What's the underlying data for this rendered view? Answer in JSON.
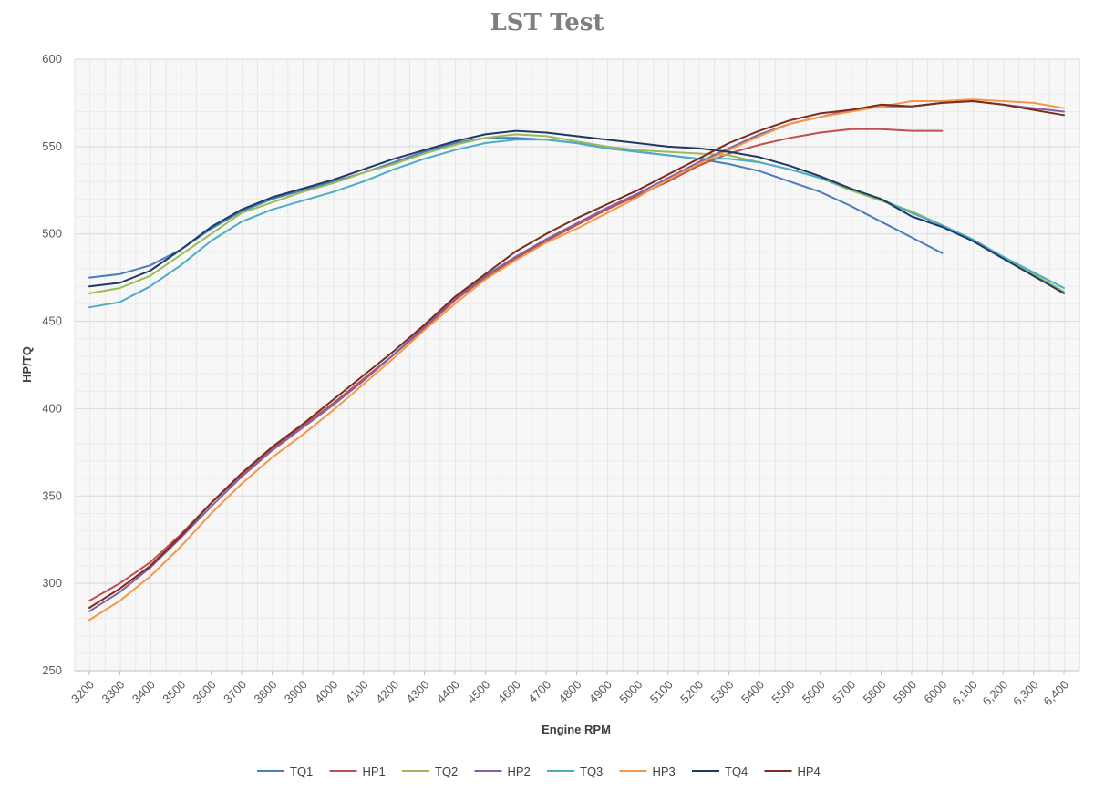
{
  "chart_data": {
    "type": "line",
    "title": "LST Test",
    "xlabel": "Engine RPM",
    "ylabel": "HP/TQ",
    "ylim": [
      250,
      600
    ],
    "yticks": [
      250,
      300,
      350,
      400,
      450,
      500,
      550,
      600
    ],
    "grid": true,
    "legend_position": "bottom",
    "categories": [
      "3200",
      "3300",
      "3400",
      "3500",
      "3600",
      "3700",
      "3800",
      "3900",
      "4000",
      "4100",
      "4200",
      "4300",
      "4400",
      "4500",
      "4600",
      "4700",
      "4800",
      "4900",
      "5000",
      "5100",
      "5200",
      "5300",
      "5400",
      "5500",
      "5600",
      "5700",
      "5800",
      "5900",
      "6000",
      "6,100",
      "6,200",
      "6,300",
      "6,400"
    ],
    "series": [
      {
        "name": "TQ1",
        "color": "#4a7ebb",
        "values": [
          475,
          477,
          482,
          491,
          503,
          513,
          520,
          525,
          530,
          535,
          541,
          547,
          552,
          555,
          555,
          554,
          552,
          549,
          547,
          545,
          543,
          540,
          536,
          530,
          524,
          516,
          507,
          498,
          489,
          null,
          null,
          null,
          null
        ]
      },
      {
        "name": "HP1",
        "color": "#c0504d",
        "values": [
          290,
          300,
          312,
          328,
          346,
          362,
          377,
          390,
          403,
          417,
          431,
          446,
          462,
          475,
          486,
          496,
          505,
          514,
          522,
          530,
          539,
          546,
          551,
          555,
          558,
          560,
          560,
          559,
          559,
          null,
          null,
          null,
          null
        ]
      },
      {
        "name": "TQ2",
        "color": "#9bbb59",
        "values": [
          466,
          469,
          476,
          488,
          500,
          512,
          518,
          524,
          529,
          535,
          540,
          546,
          551,
          555,
          557,
          556,
          553,
          550,
          548,
          547,
          546,
          545,
          541,
          537,
          532,
          525,
          519,
          513,
          505,
          496,
          487,
          477,
          467
        ]
      },
      {
        "name": "HP2",
        "color": "#8064a2",
        "values": [
          284,
          295,
          309,
          326,
          344,
          361,
          376,
          389,
          402,
          416,
          431,
          447,
          463,
          476,
          487,
          497,
          506,
          515,
          523,
          532,
          541,
          549,
          557,
          563,
          567,
          571,
          573,
          573,
          575,
          576,
          574,
          572,
          570
        ]
      },
      {
        "name": "TQ3",
        "color": "#4bacc6",
        "values": [
          458,
          461,
          470,
          482,
          496,
          507,
          514,
          519,
          524,
          530,
          537,
          543,
          548,
          552,
          554,
          554,
          552,
          549,
          547,
          545,
          543,
          543,
          541,
          537,
          532,
          526,
          520,
          512,
          505,
          497,
          487,
          478,
          469
        ]
      },
      {
        "name": "HP3",
        "color": "#f79646",
        "values": [
          279,
          290,
          304,
          321,
          340,
          357,
          372,
          385,
          399,
          414,
          429,
          445,
          460,
          474,
          485,
          495,
          503,
          512,
          521,
          531,
          540,
          548,
          556,
          563,
          567,
          570,
          573,
          576,
          576,
          577,
          576,
          575,
          572
        ]
      },
      {
        "name": "TQ4",
        "color": "#1f3864",
        "values": [
          470,
          472,
          479,
          491,
          504,
          514,
          521,
          526,
          531,
          537,
          543,
          548,
          553,
          557,
          559,
          558,
          556,
          554,
          552,
          550,
          549,
          547,
          544,
          539,
          533,
          526,
          520,
          510,
          504,
          496,
          486,
          476,
          466
        ]
      },
      {
        "name": "HP4",
        "color": "#7b2c1e",
        "values": [
          286,
          297,
          310,
          327,
          346,
          363,
          378,
          391,
          405,
          419,
          433,
          448,
          464,
          477,
          490,
          500,
          509,
          517,
          525,
          534,
          543,
          552,
          559,
          565,
          569,
          571,
          574,
          573,
          575,
          576,
          574,
          571,
          568
        ]
      }
    ]
  }
}
